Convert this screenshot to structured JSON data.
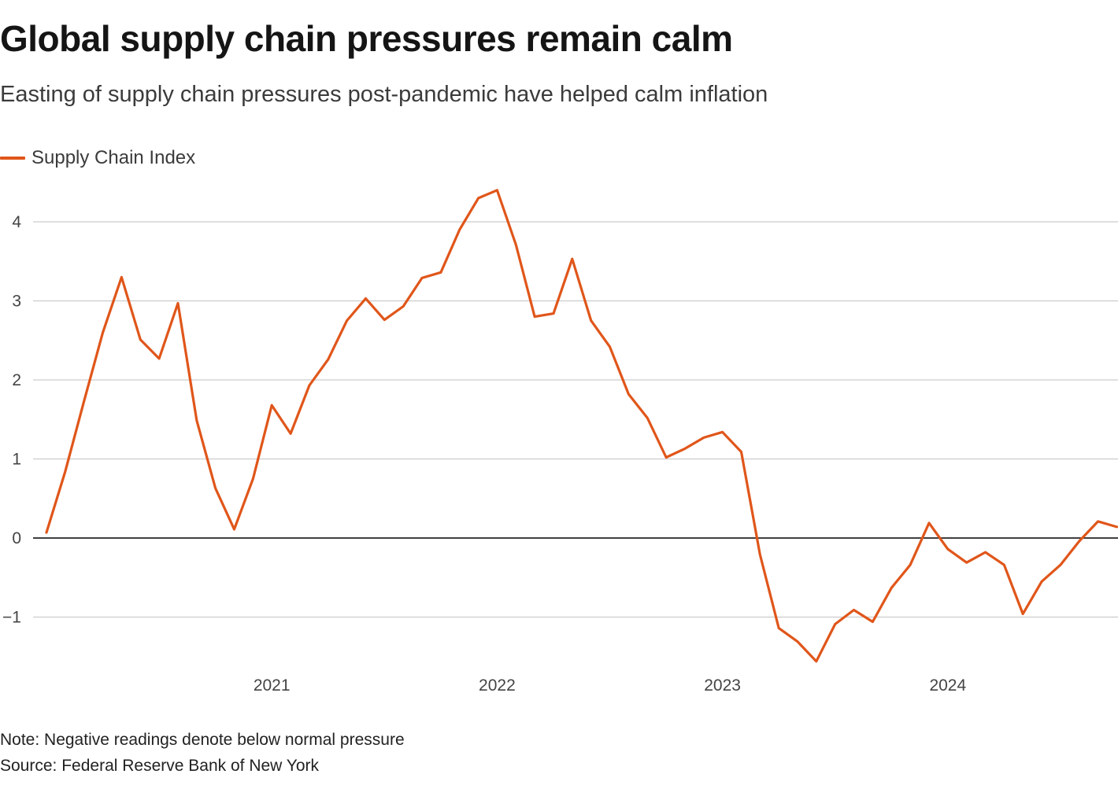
{
  "title": "Global supply chain pressures remain calm",
  "subtitle": "Easting of supply chain pressures post-pandemic have helped calm inflation",
  "note": "Note: Negative readings denote below normal pressure",
  "source": "Source: Federal Reserve Bank of New York",
  "colors": {
    "series": "#e0561a",
    "grid": "#cccccc",
    "zero_line": "#000000"
  },
  "chart_data": {
    "type": "line",
    "title": "Global supply chain pressures remain calm",
    "xlabel": "",
    "ylabel": "",
    "ylim": [
      -1.6,
      4.4
    ],
    "y_ticks": [
      -1,
      0,
      1,
      2,
      3,
      4
    ],
    "y_tick_labels": [
      "−1",
      "0",
      "1",
      "2",
      "3",
      "4"
    ],
    "x_tick_labels": [
      "2021",
      "2022",
      "2023",
      "2024"
    ],
    "grid": true,
    "legend_position": "top-left",
    "x": [
      "2020-01",
      "2020-02",
      "2020-03",
      "2020-04",
      "2020-05",
      "2020-06",
      "2020-07",
      "2020-08",
      "2020-09",
      "2020-10",
      "2020-11",
      "2020-12",
      "2021-01",
      "2021-02",
      "2021-03",
      "2021-04",
      "2021-05",
      "2021-06",
      "2021-07",
      "2021-08",
      "2021-09",
      "2021-10",
      "2021-11",
      "2021-12",
      "2022-01",
      "2022-02",
      "2022-03",
      "2022-04",
      "2022-05",
      "2022-06",
      "2022-07",
      "2022-08",
      "2022-09",
      "2022-10",
      "2022-11",
      "2022-12",
      "2023-01",
      "2023-02",
      "2023-03",
      "2023-04",
      "2023-05",
      "2023-06",
      "2023-07",
      "2023-08",
      "2023-09",
      "2023-10",
      "2023-11",
      "2023-12",
      "2024-01",
      "2024-02",
      "2024-03",
      "2024-04",
      "2024-05",
      "2024-06",
      "2024-07",
      "2024-08",
      "2024-09",
      "2024-10"
    ],
    "series": [
      {
        "name": "Supply Chain Index",
        "values": [
          0.07,
          0.84,
          1.73,
          2.6,
          3.3,
          2.51,
          2.27,
          2.97,
          1.49,
          0.63,
          0.11,
          0.75,
          1.68,
          1.32,
          1.93,
          2.26,
          2.75,
          3.03,
          2.76,
          2.93,
          3.29,
          3.36,
          3.9,
          4.3,
          4.4,
          3.71,
          2.8,
          2.84,
          3.53,
          2.75,
          2.42,
          1.82,
          1.52,
          1.02,
          1.13,
          1.27,
          1.34,
          1.09,
          -0.21,
          -1.14,
          -1.31,
          -1.56,
          -1.09,
          -0.91,
          -1.06,
          -0.63,
          -0.34,
          0.19,
          -0.14,
          -0.31,
          -0.18,
          -0.34,
          -0.96,
          -0.55,
          -0.34,
          -0.04,
          0.21,
          0.14
        ]
      }
    ]
  }
}
